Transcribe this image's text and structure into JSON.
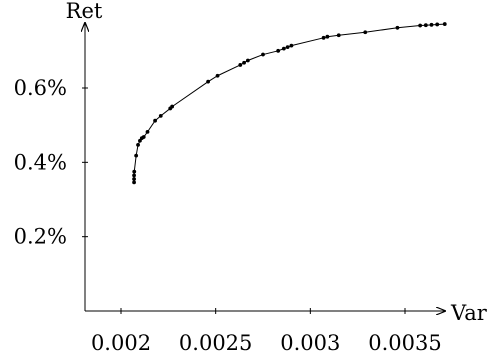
{
  "chart_data": {
    "type": "line",
    "title": "",
    "xlabel": "Var",
    "ylabel": "Ret",
    "xticks": [
      {
        "value": 0.002,
        "label": "0.002"
      },
      {
        "value": 0.0025,
        "label": "0.0025"
      },
      {
        "value": 0.003,
        "label": "0.003"
      },
      {
        "value": 0.0035,
        "label": "0.0035"
      }
    ],
    "yticks": [
      {
        "value": 0.2,
        "label": "0.2%"
      },
      {
        "value": 0.4,
        "label": "0.4%"
      },
      {
        "value": 0.6,
        "label": "0.6%"
      }
    ],
    "xlim": [
      0.00182,
      0.00386
    ],
    "ylim": [
      0.0,
      0.78
    ],
    "grid": false,
    "colors": {
      "line": "#000000",
      "marker": "#000000"
    },
    "series": [
      {
        "x": [
          0.002069,
          0.002069,
          0.002069,
          0.00207,
          0.00208,
          0.00209,
          0.0021,
          0.00211,
          0.00212,
          0.00214,
          0.00218,
          0.00221,
          0.00226,
          0.00227,
          0.00246,
          0.00251,
          0.00263,
          0.00265,
          0.00267,
          0.00275,
          0.00283,
          0.00286,
          0.00288,
          0.0029,
          0.00307,
          0.00309,
          0.00315,
          0.00329,
          0.00346,
          0.00358,
          0.00361,
          0.00364,
          0.00367,
          0.00371
        ],
        "y": [
          0.346,
          0.355,
          0.365,
          0.375,
          0.418,
          0.447,
          0.458,
          0.465,
          0.468,
          0.482,
          0.512,
          0.525,
          0.545,
          0.55,
          0.617,
          0.633,
          0.662,
          0.668,
          0.674,
          0.69,
          0.7,
          0.706,
          0.71,
          0.714,
          0.735,
          0.738,
          0.742,
          0.75,
          0.762,
          0.768,
          0.769,
          0.77,
          0.771,
          0.772
        ]
      }
    ]
  }
}
